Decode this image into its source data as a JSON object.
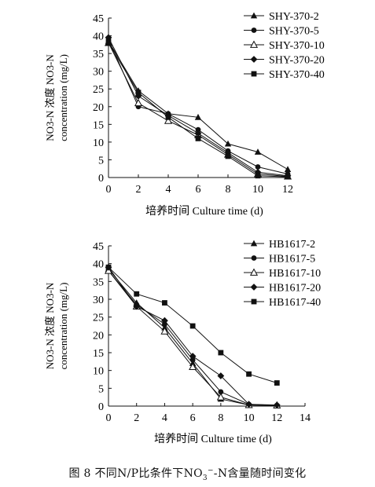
{
  "caption": {
    "pre": "图 8  不同N/P比条件下NO",
    "sub": "3",
    "sup": "−",
    "post": "-N含量随时间变化"
  },
  "chart_data": [
    {
      "type": "line",
      "xlabel": "培养时间 Culture time (d)",
      "ylabel_line1": "NO3-N 浓度 NO3-N",
      "ylabel_line2": "concentration (mg/L)",
      "x": [
        0,
        2,
        4,
        6,
        8,
        10,
        12
      ],
      "xlim": [
        0,
        12
      ],
      "ylim": [
        0,
        45
      ],
      "xticks": [
        0,
        2,
        4,
        6,
        8,
        10,
        12
      ],
      "yticks": [
        0,
        5,
        10,
        15,
        20,
        25,
        30,
        35,
        40,
        45
      ],
      "legend_position": "top-right",
      "series": [
        {
          "name": "SHY-370-2",
          "marker": "triangle-filled",
          "values": [
            38.5,
            24.5,
            18.0,
            17.0,
            9.5,
            7.2,
            2.3
          ]
        },
        {
          "name": "SHY-370-5",
          "marker": "circle-filled",
          "values": [
            39.0,
            20.0,
            18.0,
            13.5,
            7.5,
            3.0,
            1.0
          ]
        },
        {
          "name": "SHY-370-10",
          "marker": "triangle-open",
          "values": [
            38.0,
            21.0,
            16.0,
            12.0,
            6.5,
            1.0,
            0.3
          ]
        },
        {
          "name": "SHY-370-20",
          "marker": "diamond-filled",
          "values": [
            39.5,
            23.0,
            17.5,
            12.5,
            7.0,
            1.5,
            0.5
          ]
        },
        {
          "name": "SHY-370-40",
          "marker": "square-filled",
          "values": [
            38.0,
            24.0,
            17.0,
            11.0,
            6.0,
            0.5,
            0.2
          ]
        }
      ]
    },
    {
      "type": "line",
      "xlabel": "培养时间 Culture time (d)",
      "ylabel_line1": "NO3-N 浓度 NO3-N",
      "ylabel_line2": "concentration (mg/L)",
      "x": [
        0,
        2,
        4,
        6,
        8,
        10,
        12
      ],
      "xlim": [
        0,
        14
      ],
      "ylim": [
        0,
        45
      ],
      "xticks": [
        0,
        2,
        4,
        6,
        8,
        10,
        12,
        14
      ],
      "yticks": [
        0,
        5,
        10,
        15,
        20,
        25,
        30,
        35,
        40,
        45
      ],
      "legend_position": "top-right",
      "series": [
        {
          "name": "HB1617-2",
          "marker": "triangle-filled",
          "values": [
            38.5,
            29.0,
            22.0,
            12.0,
            2.0,
            0.3,
            0.2
          ]
        },
        {
          "name": "HB1617-5",
          "marker": "circle-filled",
          "values": [
            38.0,
            28.5,
            23.0,
            13.0,
            4.0,
            0.5,
            0.2
          ]
        },
        {
          "name": "HB1617-10",
          "marker": "triangle-open",
          "values": [
            38.0,
            28.0,
            21.0,
            11.0,
            2.5,
            0.3,
            0.2
          ]
        },
        {
          "name": "HB1617-20",
          "marker": "diamond-filled",
          "values": [
            39.0,
            28.0,
            24.0,
            14.0,
            8.5,
            0.5,
            0.3
          ]
        },
        {
          "name": "HB1617-40",
          "marker": "square-filled",
          "values": [
            39.0,
            31.5,
            29.0,
            22.5,
            15.0,
            9.0,
            6.5
          ]
        }
      ]
    }
  ]
}
